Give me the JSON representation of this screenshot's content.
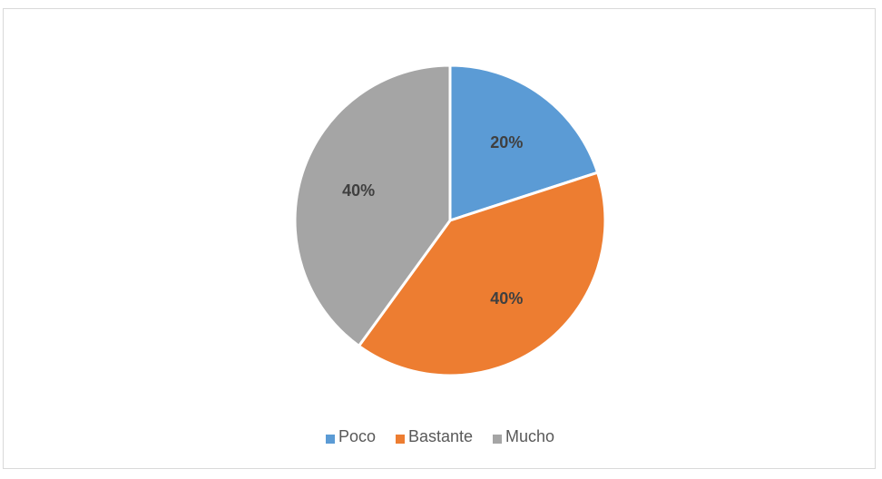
{
  "chart_data": {
    "type": "pie",
    "title": "",
    "categories": [
      "Poco",
      "Bastante",
      "Mucho"
    ],
    "values": [
      20,
      40,
      40
    ],
    "data_labels": [
      "20%",
      "40%",
      "40%"
    ],
    "colors": [
      "#5b9bd5",
      "#ed7d31",
      "#a5a5a5"
    ],
    "legend": {
      "position": "bottom",
      "entries": [
        "Poco",
        "Bastante",
        "Mucho"
      ]
    }
  }
}
